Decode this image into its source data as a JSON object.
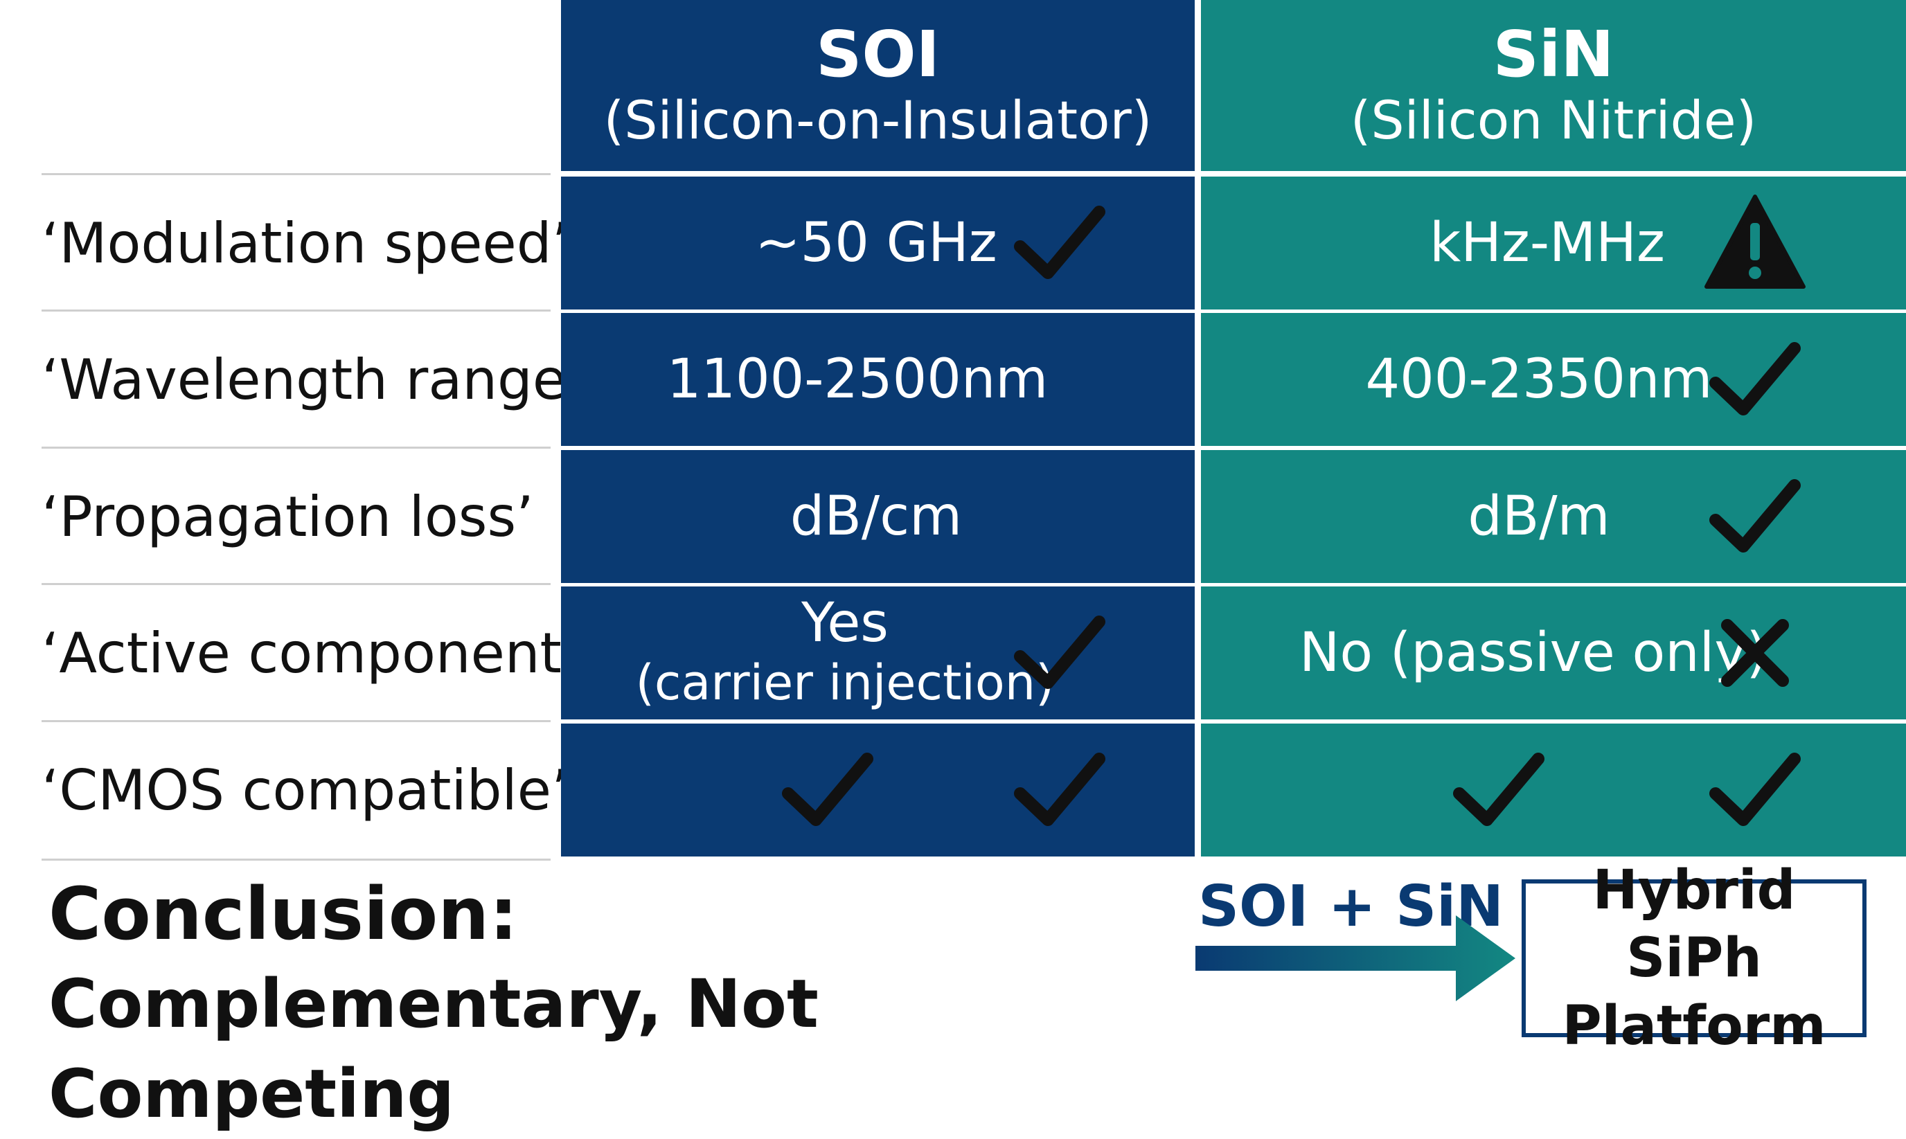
{
  "columns": {
    "soi": {
      "title": "SOI",
      "subtitle": "(Silicon-on-Insulator)"
    },
    "sin": {
      "title": "SiN",
      "subtitle": "(Silicon Nitride)"
    }
  },
  "rows": [
    {
      "label": "‘Modulation speed’",
      "soi": {
        "lines": [
          "~50 GHz"
        ],
        "mark": "check-icon"
      },
      "sin": {
        "lines": [
          "kHz-MHz"
        ],
        "mark": "warning-icon"
      }
    },
    {
      "label": "‘Wavelength range’",
      "soi": {
        "lines": [
          "1100-2500nm"
        ],
        "mark": ""
      },
      "sin": {
        "lines": [
          "400-2350nm"
        ],
        "mark": "check-icon"
      }
    },
    {
      "label": "‘Propagation loss’",
      "soi": {
        "lines": [
          "dB/cm"
        ],
        "mark": ""
      },
      "sin": {
        "lines": [
          "dB/m"
        ],
        "mark": "check-icon"
      }
    },
    {
      "label": "‘Active components",
      "soi": {
        "lines": [
          "Yes",
          "(carrier injection)"
        ],
        "mark": "check-icon"
      },
      "sin": {
        "lines": [
          "No (passive only)"
        ],
        "mark": "cross-icon"
      }
    },
    {
      "label": "‘CMOS compatible’",
      "soi": {
        "lines": [],
        "mark": "check-icon",
        "extra_mark": "check-icon"
      },
      "sin": {
        "lines": [],
        "mark": "check-icon",
        "extra_mark": "check-icon"
      }
    }
  ],
  "conclusion": {
    "line1": "Conclusion:",
    "line2": "Complementary, Not Competing"
  },
  "combo": {
    "label": "SOI + SiN",
    "arrow_icon": "right-arrow-icon",
    "result_line1": "Hybrid SiPh",
    "result_line2": "Platform"
  },
  "colors": {
    "soi": "#0a3a72",
    "sin": "#138882",
    "mark": "#111111"
  }
}
